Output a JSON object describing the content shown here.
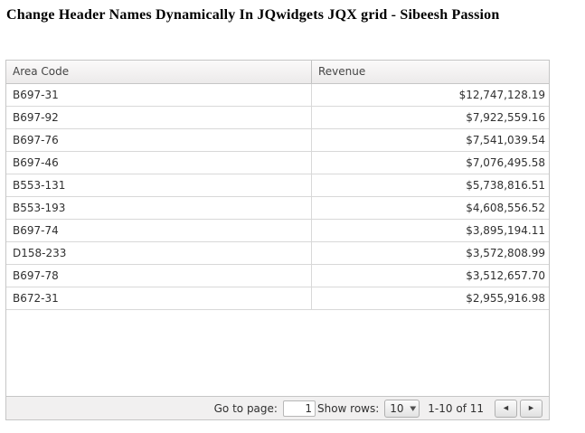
{
  "page": {
    "title": "Change Header Names Dynamically In JQwidgets JQX grid - Sibeesh Passion"
  },
  "grid": {
    "columns": [
      {
        "label": "Area Code"
      },
      {
        "label": "Revenue"
      }
    ],
    "rows": [
      {
        "area_code": "B697-31",
        "revenue": "$12,747,128.19"
      },
      {
        "area_code": "B697-92",
        "revenue": "$7,922,559.16"
      },
      {
        "area_code": "B697-76",
        "revenue": "$7,541,039.54"
      },
      {
        "area_code": "B697-46",
        "revenue": "$7,076,495.58"
      },
      {
        "area_code": "B553-131",
        "revenue": "$5,738,816.51"
      },
      {
        "area_code": "B553-193",
        "revenue": "$4,608,556.52"
      },
      {
        "area_code": "B697-74",
        "revenue": "$3,895,194.11"
      },
      {
        "area_code": "D158-233",
        "revenue": "$3,572,808.99"
      },
      {
        "area_code": "B697-78",
        "revenue": "$3,512,657.70"
      },
      {
        "area_code": "B672-31",
        "revenue": "$2,955,916.98"
      }
    ],
    "pager": {
      "go_to_page_label": "Go to page:",
      "page_input_value": "1",
      "show_rows_label": "Show rows:",
      "rows_selected": "10",
      "dropdown_arrow_icon": "▼",
      "range_label": "1-10 of 11",
      "prev_icon": "◄",
      "next_icon": "►"
    }
  },
  "colors": {
    "grid_border": "#c6c6c6",
    "header_background": "#f0efef",
    "row_border": "#d8d8d8",
    "pager_background": "#f1f0f0",
    "text": "#303030"
  }
}
